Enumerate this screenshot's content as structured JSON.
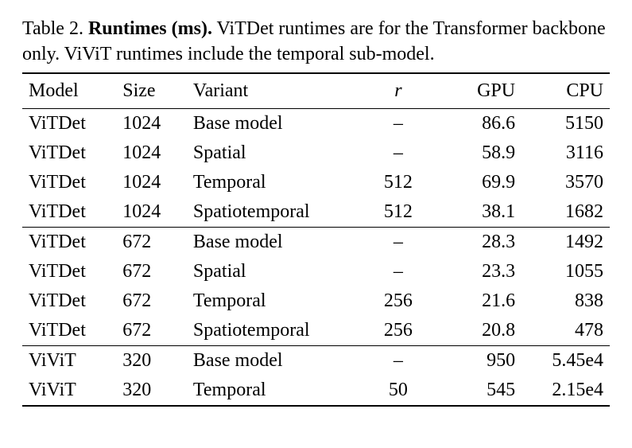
{
  "caption": {
    "label": "Table 2.",
    "title": "Runtimes (ms).",
    "rest": " ViTDet runtimes are for the Transformer backbone only. ViViT runtimes include the temporal sub-model."
  },
  "columns": [
    "Model",
    "Size",
    "Variant",
    "r",
    "GPU",
    "CPU"
  ],
  "col_align": [
    "left",
    "left",
    "left",
    "center",
    "right",
    "right"
  ],
  "col_widths_pct": [
    16,
    12,
    30,
    12,
    15,
    15
  ],
  "groups": [
    {
      "rows": [
        {
          "model": "ViTDet",
          "size": "1024",
          "variant": "Base model",
          "r": "–",
          "gpu": "86.6",
          "cpu": "5150"
        },
        {
          "model": "ViTDet",
          "size": "1024",
          "variant": "Spatial",
          "r": "–",
          "gpu": "58.9",
          "cpu": "3116"
        },
        {
          "model": "ViTDet",
          "size": "1024",
          "variant": "Temporal",
          "r": "512",
          "gpu": "69.9",
          "cpu": "3570"
        },
        {
          "model": "ViTDet",
          "size": "1024",
          "variant": "Spatiotemporal",
          "r": "512",
          "gpu": "38.1",
          "cpu": "1682"
        }
      ]
    },
    {
      "rows": [
        {
          "model": "ViTDet",
          "size": "672",
          "variant": "Base model",
          "r": "–",
          "gpu": "28.3",
          "cpu": "1492"
        },
        {
          "model": "ViTDet",
          "size": "672",
          "variant": "Spatial",
          "r": "–",
          "gpu": "23.3",
          "cpu": "1055"
        },
        {
          "model": "ViTDet",
          "size": "672",
          "variant": "Temporal",
          "r": "256",
          "gpu": "21.6",
          "cpu": "838"
        },
        {
          "model": "ViTDet",
          "size": "672",
          "variant": "Spatiotemporal",
          "r": "256",
          "gpu": "20.8",
          "cpu": "478"
        }
      ]
    },
    {
      "rows": [
        {
          "model": "ViViT",
          "size": "320",
          "variant": "Base model",
          "r": "–",
          "gpu": "950",
          "cpu": "5.45e4"
        },
        {
          "model": "ViViT",
          "size": "320",
          "variant": "Temporal",
          "r": "50",
          "gpu": "545",
          "cpu": "2.15e4"
        }
      ]
    }
  ],
  "style": {
    "font_family": "Times New Roman",
    "body_fontsize_pt": 18,
    "rule_color": "#000000",
    "background_color": "#ffffff",
    "text_color": "#000000",
    "r_header_italic": true
  }
}
